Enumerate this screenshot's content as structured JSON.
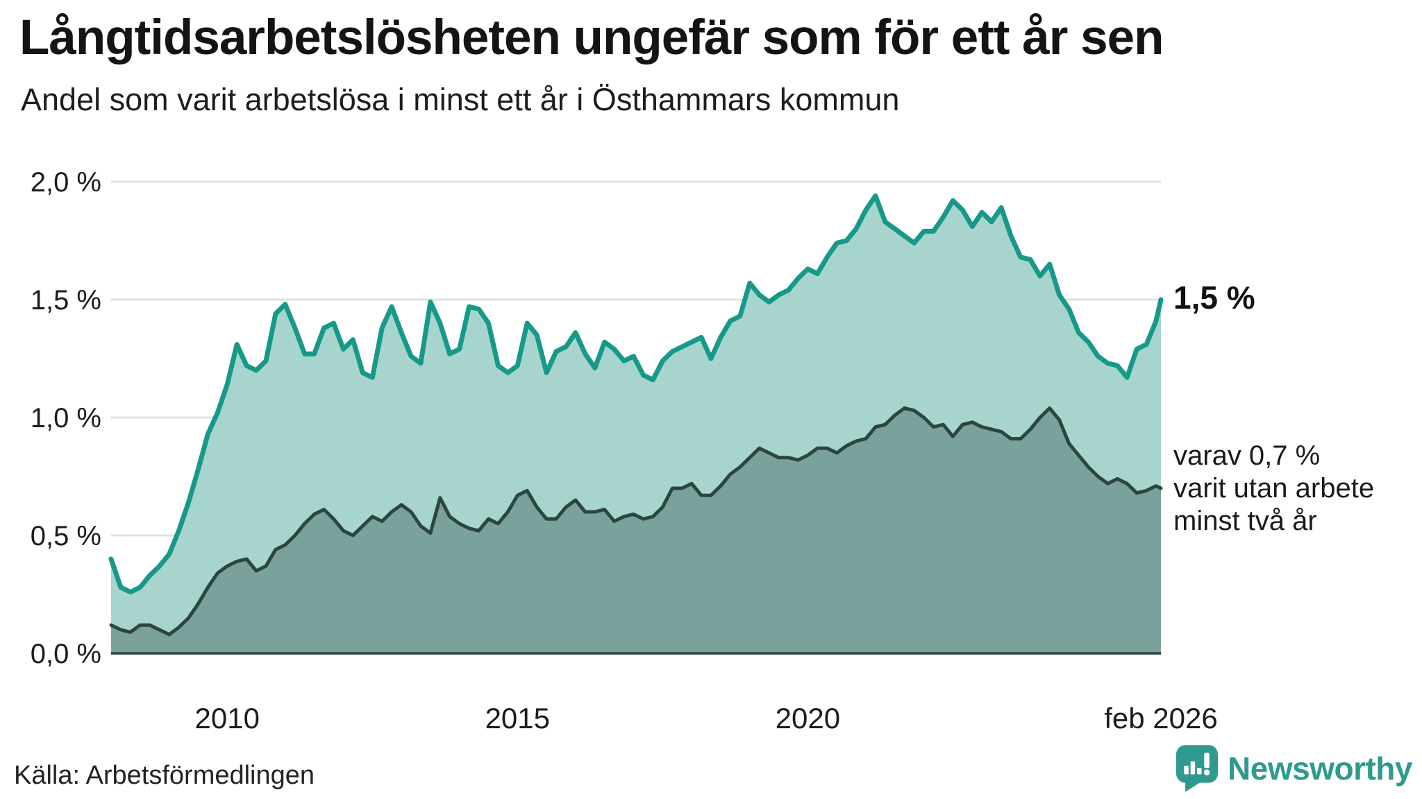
{
  "chart_data": {
    "type": "area",
    "title": "Långtidsarbetslösheten ungefär som för ett år sen",
    "subtitle": "Andel som varit arbetslösa i minst ett år i Östhammars kommun",
    "unit": "%",
    "ylim": [
      0,
      2
    ],
    "grid": "horizontal",
    "gridline_color": "#e1e1e1",
    "baseline_color": "#2d4541",
    "x_range": {
      "start": "jan 2008",
      "end": "feb 2026"
    },
    "sampling": "values every 2 months from jan 2008; final extra point feb 2026",
    "y_ticks": [
      {
        "value": 2.0,
        "label": "2,0 %"
      },
      {
        "value": 1.5,
        "label": "1,5 %"
      },
      {
        "value": 1.0,
        "label": "1,0 %"
      },
      {
        "value": 0.5,
        "label": "0,5 %"
      },
      {
        "value": 0.0,
        "label": "0,0 %"
      }
    ],
    "x_ticks": [
      {
        "month": 24,
        "label": "2010"
      },
      {
        "month": 84,
        "label": "2015"
      },
      {
        "month": 144,
        "label": "2020"
      },
      {
        "month": 217,
        "label": "feb 2026"
      }
    ],
    "series": [
      {
        "name": "arbetslösa minst ett år",
        "color": "#17998a",
        "fill": "#a7d5ce",
        "stroke_width": 7,
        "end_value": "1,5 %",
        "values": [
          0.4,
          0.28,
          0.26,
          0.28,
          0.33,
          0.37,
          0.42,
          0.52,
          0.64,
          0.78,
          0.93,
          1.02,
          1.14,
          1.31,
          1.22,
          1.2,
          1.24,
          1.44,
          1.48,
          1.38,
          1.27,
          1.27,
          1.38,
          1.4,
          1.29,
          1.33,
          1.19,
          1.17,
          1.38,
          1.47,
          1.36,
          1.26,
          1.23,
          1.49,
          1.4,
          1.27,
          1.29,
          1.47,
          1.46,
          1.4,
          1.22,
          1.19,
          1.22,
          1.4,
          1.35,
          1.19,
          1.28,
          1.3,
          1.36,
          1.27,
          1.21,
          1.32,
          1.29,
          1.24,
          1.26,
          1.18,
          1.16,
          1.24,
          1.28,
          1.3,
          1.32,
          1.34,
          1.25,
          1.34,
          1.41,
          1.43,
          1.57,
          1.52,
          1.49,
          1.52,
          1.54,
          1.59,
          1.63,
          1.61,
          1.68,
          1.74,
          1.75,
          1.8,
          1.88,
          1.94,
          1.83,
          1.8,
          1.77,
          1.74,
          1.79,
          1.79,
          1.85,
          1.92,
          1.88,
          1.81,
          1.87,
          1.83,
          1.89,
          1.77,
          1.68,
          1.67,
          1.6,
          1.65,
          1.52,
          1.46,
          1.36,
          1.32,
          1.26,
          1.23,
          1.22,
          1.17,
          1.29,
          1.31,
          1.41,
          1.5
        ]
      },
      {
        "name": "varav utan arbete minst två år",
        "color": "#2d4541",
        "fill": "#7aa19b",
        "stroke_width": 5,
        "end_value": "0,7 %",
        "values": [
          0.12,
          0.1,
          0.09,
          0.12,
          0.12,
          0.1,
          0.08,
          0.11,
          0.15,
          0.21,
          0.28,
          0.34,
          0.37,
          0.39,
          0.4,
          0.35,
          0.37,
          0.44,
          0.46,
          0.5,
          0.55,
          0.59,
          0.61,
          0.57,
          0.52,
          0.5,
          0.54,
          0.58,
          0.56,
          0.6,
          0.63,
          0.6,
          0.54,
          0.51,
          0.66,
          0.58,
          0.55,
          0.53,
          0.52,
          0.57,
          0.55,
          0.6,
          0.67,
          0.69,
          0.62,
          0.57,
          0.57,
          0.62,
          0.65,
          0.6,
          0.6,
          0.61,
          0.56,
          0.58,
          0.59,
          0.57,
          0.58,
          0.62,
          0.7,
          0.7,
          0.72,
          0.67,
          0.67,
          0.71,
          0.76,
          0.79,
          0.83,
          0.87,
          0.85,
          0.83,
          0.83,
          0.82,
          0.84,
          0.87,
          0.87,
          0.85,
          0.88,
          0.9,
          0.91,
          0.96,
          0.97,
          1.01,
          1.04,
          1.03,
          1.0,
          0.96,
          0.97,
          0.92,
          0.97,
          0.98,
          0.96,
          0.95,
          0.94,
          0.91,
          0.91,
          0.95,
          1.0,
          1.04,
          0.99,
          0.89,
          0.84,
          0.79,
          0.75,
          0.72,
          0.74,
          0.72,
          0.68,
          0.69,
          0.71,
          0.7
        ]
      }
    ],
    "annotations": {
      "end_label": {
        "text": "1,5 %",
        "value": 1.5
      },
      "note": {
        "lines": [
          "varav 0,7 %",
          "varit utan arbete",
          "minst två år"
        ],
        "anchor_value": 0.7
      }
    }
  },
  "footer": {
    "source": "Källa: Arbetsförmedlingen",
    "brand": "Newsworthy",
    "brand_color": "#2f9a8f"
  }
}
